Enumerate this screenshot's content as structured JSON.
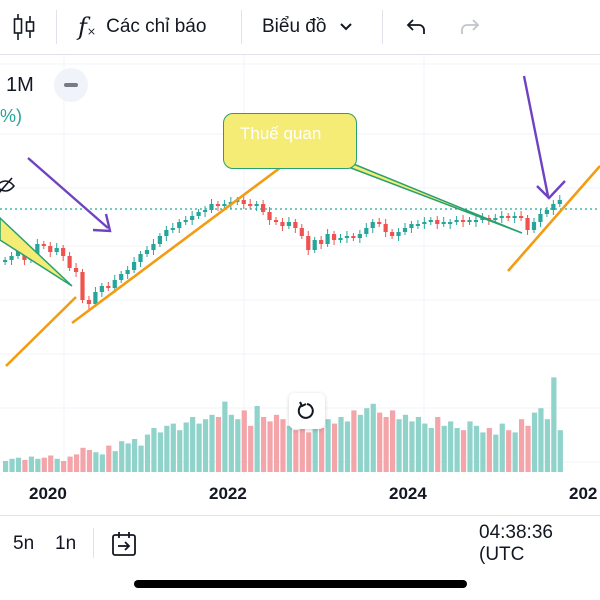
{
  "toolbar": {
    "indicators_label": "Các chỉ báo",
    "chart_type_label": "Biểu đồ"
  },
  "legend": {
    "interval": "1M",
    "change_fragment": "%)"
  },
  "annotation": {
    "callout_text": "Thuế quan"
  },
  "colors": {
    "up": "#26a69a",
    "down": "#ef5350",
    "volume_up": "#8fd3cb",
    "volume_down": "#f3a5a9",
    "trendline": "#f39c12",
    "arrow": "#6f42c1",
    "callout_fill": "#f4ec74",
    "callout_border": "#28a06f",
    "last_price_line": "#22ab94"
  },
  "x_axis": {
    "tick_labels": [
      "2020",
      "2022",
      "2024",
      "202"
    ]
  },
  "bottom_bar": {
    "range_5y": "5n",
    "range_1y": "1n",
    "clock": "04:38:36 (UTC"
  },
  "chart_data": {
    "type": "candlestick",
    "interval": "1M",
    "x_ticks": [
      "2020",
      "2022",
      "2024",
      "202"
    ],
    "price_close_relative": [
      0.5,
      0.52,
      0.55,
      0.5,
      0.53,
      0.58,
      0.57,
      0.54,
      0.56,
      0.52,
      0.46,
      0.44,
      0.3,
      0.28,
      0.34,
      0.37,
      0.36,
      0.4,
      0.43,
      0.45,
      0.49,
      0.53,
      0.55,
      0.58,
      0.62,
      0.65,
      0.66,
      0.69,
      0.7,
      0.72,
      0.74,
      0.75,
      0.78,
      0.77,
      0.78,
      0.79,
      0.8,
      0.78,
      0.77,
      0.78,
      0.74,
      0.7,
      0.69,
      0.67,
      0.69,
      0.66,
      0.62,
      0.55,
      0.6,
      0.58,
      0.63,
      0.6,
      0.61,
      0.62,
      0.61,
      0.63,
      0.66,
      0.69,
      0.68,
      0.64,
      0.62,
      0.64,
      0.66,
      0.68,
      0.68,
      0.69,
      0.7,
      0.68,
      0.69,
      0.69,
      0.7,
      0.69,
      0.7,
      0.7,
      0.71,
      0.7,
      0.71,
      0.72,
      0.71,
      0.72,
      0.71,
      0.65,
      0.69,
      0.73,
      0.75,
      0.78,
      0.8
    ],
    "volume_relative": [
      0.1,
      0.12,
      0.13,
      0.11,
      0.14,
      0.12,
      0.13,
      0.15,
      0.12,
      0.1,
      0.14,
      0.16,
      0.22,
      0.2,
      0.18,
      0.16,
      0.24,
      0.19,
      0.28,
      0.26,
      0.3,
      0.24,
      0.34,
      0.4,
      0.36,
      0.42,
      0.44,
      0.38,
      0.45,
      0.5,
      0.44,
      0.48,
      0.52,
      0.5,
      0.64,
      0.52,
      0.48,
      0.56,
      0.42,
      0.6,
      0.5,
      0.46,
      0.52,
      0.48,
      0.42,
      0.38,
      0.44,
      0.36,
      0.42,
      0.4,
      0.48,
      0.44,
      0.5,
      0.46,
      0.56,
      0.52,
      0.58,
      0.62,
      0.54,
      0.5,
      0.56,
      0.48,
      0.52,
      0.46,
      0.5,
      0.44,
      0.4,
      0.5,
      0.42,
      0.46,
      0.4,
      0.38,
      0.46,
      0.42,
      0.36,
      0.4,
      0.34,
      0.44,
      0.38,
      0.36,
      0.48,
      0.42,
      0.54,
      0.58,
      0.48,
      0.86,
      0.38
    ]
  }
}
